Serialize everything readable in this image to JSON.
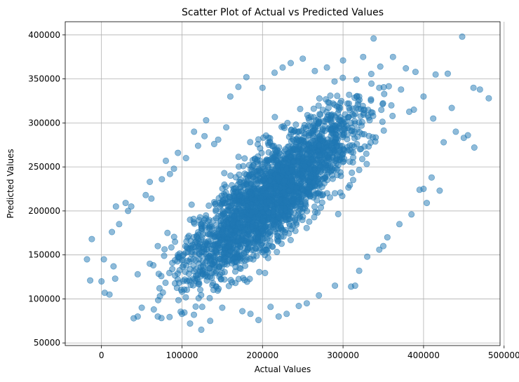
{
  "chart_data": {
    "type": "scatter",
    "title": "Scatter Plot of Actual vs Predicted Values",
    "xlabel": "Actual Values",
    "ylabel": "Predicted Values",
    "xlim": [
      -45000,
      495000
    ],
    "ylim": [
      47000,
      415000
    ],
    "xticks": [
      0,
      100000,
      200000,
      300000,
      400000,
      500000
    ],
    "yticks": [
      50000,
      100000,
      150000,
      200000,
      250000,
      300000,
      350000,
      400000
    ],
    "xtick_labels": [
      "0",
      "100000",
      "200000",
      "300000",
      "400000",
      "500000"
    ],
    "ytick_labels": [
      "50000",
      "100000",
      "150000",
      "200000",
      "250000",
      "300000",
      "350000",
      "400000"
    ],
    "grid": true,
    "point_color": "#1f77b4",
    "point_alpha": 0.5,
    "points": [
      [
        -18000,
        145000
      ],
      [
        -14000,
        121000
      ],
      [
        -12000,
        168000
      ],
      [
        0,
        120000
      ],
      [
        3000,
        145000
      ],
      [
        4000,
        107000
      ],
      [
        10000,
        105000
      ],
      [
        13000,
        176000
      ],
      [
        15000,
        137000
      ],
      [
        17000,
        123000
      ],
      [
        18000,
        205000
      ],
      [
        22000,
        185000
      ],
      [
        30000,
        209000
      ],
      [
        33000,
        200000
      ],
      [
        37000,
        205000
      ],
      [
        40000,
        78000
      ],
      [
        45000,
        80000
      ],
      [
        50000,
        90000
      ],
      [
        55000,
        218000
      ],
      [
        60000,
        233000
      ],
      [
        62000,
        214000
      ],
      [
        65000,
        88000
      ],
      [
        70000,
        80000
      ],
      [
        75000,
        236000
      ],
      [
        80000,
        257000
      ],
      [
        85000,
        242000
      ],
      [
        90000,
        248000
      ],
      [
        95000,
        266000
      ],
      [
        100000,
        83000
      ],
      [
        105000,
        260000
      ],
      [
        110000,
        72000
      ],
      [
        115000,
        290000
      ],
      [
        120000,
        274000
      ],
      [
        124000,
        65000
      ],
      [
        128000,
        285000
      ],
      [
        130000,
        303000
      ],
      [
        135000,
        75000
      ],
      [
        140000,
        276000
      ],
      [
        145000,
        281000
      ],
      [
        150000,
        90000
      ],
      [
        155000,
        295000
      ],
      [
        160000,
        330000
      ],
      [
        170000,
        341000
      ],
      [
        175000,
        86000
      ],
      [
        180000,
        352000
      ],
      [
        185000,
        83000
      ],
      [
        195000,
        76000
      ],
      [
        200000,
        340000
      ],
      [
        210000,
        91000
      ],
      [
        215000,
        357000
      ],
      [
        220000,
        80000
      ],
      [
        225000,
        363000
      ],
      [
        230000,
        83000
      ],
      [
        235000,
        368000
      ],
      [
        245000,
        92000
      ],
      [
        250000,
        373000
      ],
      [
        255000,
        95000
      ],
      [
        265000,
        359000
      ],
      [
        270000,
        104000
      ],
      [
        280000,
        363000
      ],
      [
        290000,
        115000
      ],
      [
        300000,
        371000
      ],
      [
        310000,
        114000
      ],
      [
        315000,
        115000
      ],
      [
        320000,
        132000
      ],
      [
        325000,
        375000
      ],
      [
        330000,
        148000
      ],
      [
        338000,
        396000
      ],
      [
        345000,
        156000
      ],
      [
        350000,
        160000
      ],
      [
        355000,
        170000
      ],
      [
        362000,
        375000
      ],
      [
        370000,
        185000
      ],
      [
        378000,
        362000
      ],
      [
        385000,
        196000
      ],
      [
        390000,
        358000
      ],
      [
        395000,
        224000
      ],
      [
        400000,
        225000
      ],
      [
        404000,
        209000
      ],
      [
        410000,
        238000
      ],
      [
        415000,
        355000
      ],
      [
        420000,
        223000
      ],
      [
        425000,
        278000
      ],
      [
        430000,
        356000
      ],
      [
        435000,
        317000
      ],
      [
        440000,
        290000
      ],
      [
        448000,
        398000
      ],
      [
        450000,
        283000
      ],
      [
        455000,
        286000
      ],
      [
        462000,
        340000
      ],
      [
        463000,
        272000
      ],
      [
        470000,
        338000
      ],
      [
        481000,
        328000
      ],
      [
        45000,
        128000
      ],
      [
        60000,
        140000
      ],
      [
        70000,
        160000
      ],
      [
        82000,
        175000
      ],
      [
        95000,
        150000
      ],
      [
        110000,
        190000
      ],
      [
        125000,
        170000
      ],
      [
        140000,
        210000
      ],
      [
        150000,
        195000
      ],
      [
        165000,
        225000
      ],
      [
        180000,
        205000
      ],
      [
        190000,
        245000
      ],
      [
        205000,
        230000
      ],
      [
        215000,
        262000
      ],
      [
        230000,
        248000
      ],
      [
        245000,
        280000
      ],
      [
        260000,
        265000
      ],
      [
        270000,
        300000
      ],
      [
        285000,
        285000
      ],
      [
        295000,
        318000
      ],
      [
        310000,
        300000
      ],
      [
        320000,
        330000
      ],
      [
        335000,
        312000
      ],
      [
        345000,
        340000
      ],
      [
        360000,
        320000
      ],
      [
        372000,
        338000
      ],
      [
        388000,
        315000
      ],
      [
        400000,
        330000
      ],
      [
        412000,
        305000
      ]
    ]
  }
}
